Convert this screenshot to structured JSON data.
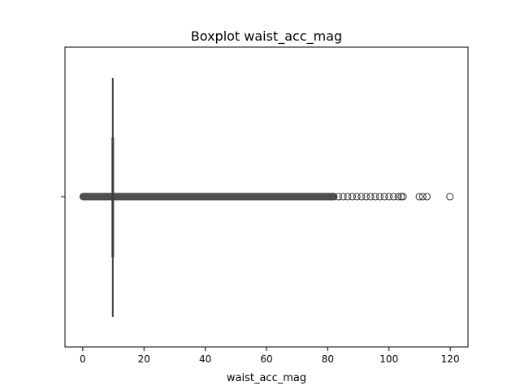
{
  "chart_data": {
    "type": "boxplot",
    "title": "Boxplot waist_acc_mag",
    "xlabel": "waist_acc_mag",
    "ylabel": "",
    "orientation": "horizontal",
    "xlim": [
      -5.8,
      125.8
    ],
    "xticks": [
      0,
      20,
      40,
      60,
      80,
      100,
      120
    ],
    "xtick_labels": [
      "0",
      "20",
      "40",
      "60",
      "80",
      "100",
      "120"
    ],
    "box": {
      "q1": 9.6,
      "median": 9.8,
      "q3": 10.0,
      "whisker_low": 9.4,
      "whisker_high": 10.2
    },
    "outlier_dense_range": [
      0.0,
      82.0
    ],
    "outliers": [
      82,
      83.5,
      85,
      86.5,
      88,
      89.5,
      91,
      92.5,
      94,
      95.5,
      97,
      98.5,
      100,
      101.5,
      103,
      104,
      104.6,
      109.9,
      111,
      112.4,
      119.9
    ],
    "grid": false,
    "colors": {
      "box_line": "#3d3d3d",
      "axes": "#000000",
      "marker_edge": "#3d3d3d"
    }
  }
}
